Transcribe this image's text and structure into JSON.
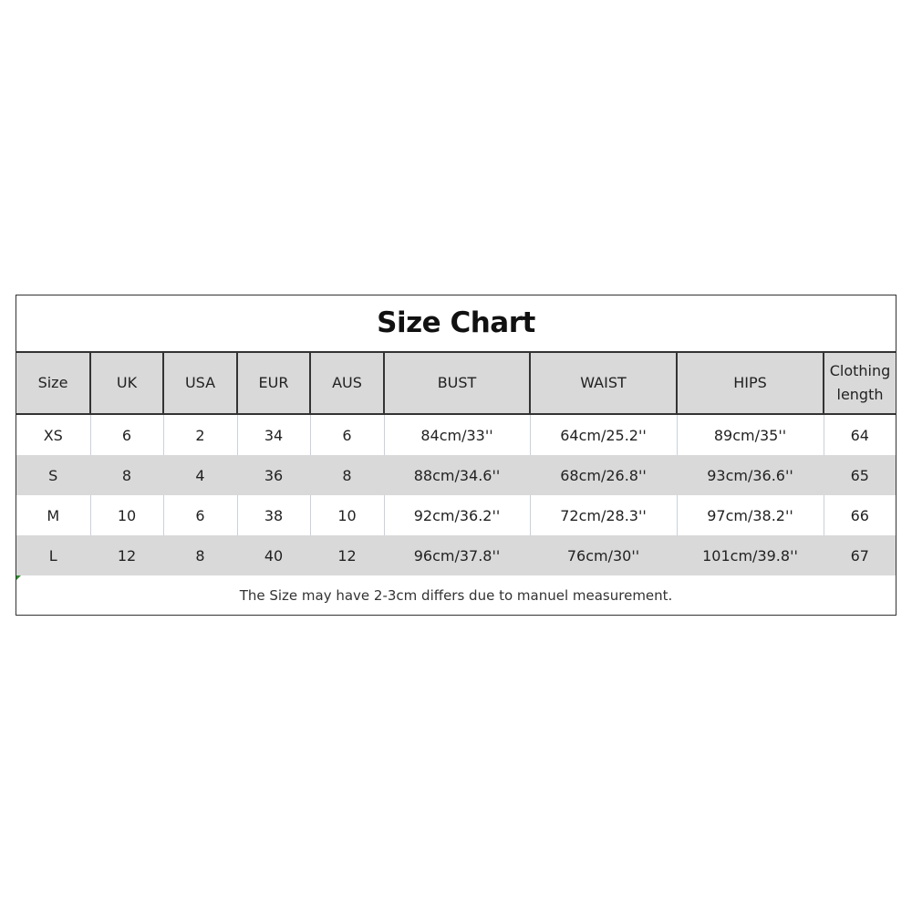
{
  "title": "Size Chart",
  "columns": [
    "Size",
    "UK",
    "USA",
    "EUR",
    "AUS",
    "BUST",
    "WAIST",
    "HIPS",
    "Clothing length"
  ],
  "rows": [
    [
      "XS",
      "6",
      "2",
      "34",
      "6",
      "84cm/33''",
      "64cm/25.2''",
      "89cm/35''",
      "64"
    ],
    [
      "S",
      "8",
      "4",
      "36",
      "8",
      "88cm/34.6''",
      "68cm/26.8''",
      "93cm/36.6''",
      "65"
    ],
    [
      "M",
      "10",
      "6",
      "38",
      "10",
      "92cm/36.2''",
      "72cm/28.3''",
      "97cm/38.2''",
      "66"
    ],
    [
      "L",
      "12",
      "8",
      "40",
      "12",
      "96cm/37.8''",
      "76cm/30''",
      "101cm/39.8''",
      "67"
    ]
  ],
  "note": "The Size may have 2-3cm differs due to manuel measurement.",
  "colors": {
    "header_bg": "#d9d9d9",
    "alt_row_bg": "#d9d9d9",
    "border": "#333333"
  }
}
